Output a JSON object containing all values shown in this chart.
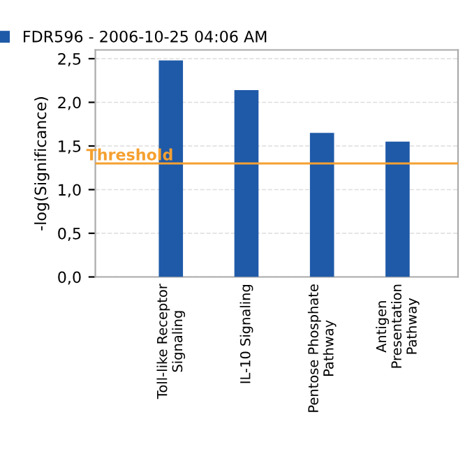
{
  "chart_data": {
    "type": "bar",
    "ylabel": "-log(Significance)",
    "categories": [
      "Toll-like Receptor\nSignaling",
      "IL-10 Signaling",
      "Pentose Phosphate\nPathway",
      "Antigen\nPresentation\nPathway"
    ],
    "series": [
      {
        "name": "FDR596 - 2006-10-25 04:06 AM",
        "color": "#1f5aa8",
        "values": [
          2.48,
          2.14,
          1.65,
          1.55
        ]
      }
    ],
    "ylim": [
      0,
      2.6
    ],
    "yticks": [
      {
        "value": 0,
        "label": "0,0"
      },
      {
        "value": 0.5,
        "label": "0,5"
      },
      {
        "value": 1.0,
        "label": "1,0"
      },
      {
        "value": 1.5,
        "label": "1,5"
      },
      {
        "value": 2.0,
        "label": "2,0"
      },
      {
        "value": 2.5,
        "label": "2,5"
      }
    ],
    "ref_lines": [
      {
        "axis": "y",
        "value": 1.3,
        "label": "Threshold",
        "color": "#f5a030"
      }
    ],
    "grid": "y",
    "legend": "top left"
  }
}
